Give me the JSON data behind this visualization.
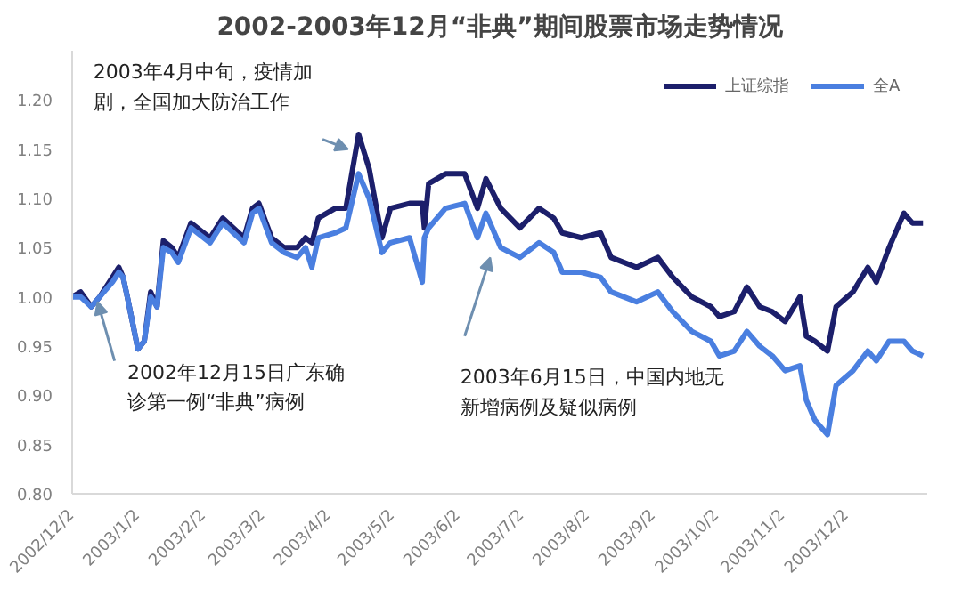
{
  "chart_data": {
    "type": "line",
    "title": "2002-2003年12月“非典”期间股票市场走势情况",
    "xlim": [
      "2002-12-02",
      "2004-01-09"
    ],
    "xticks": [
      {
        "value": "2002-12-02",
        "label": "2002/12/2"
      },
      {
        "value": "2003-01-02",
        "label": "2003/1/2"
      },
      {
        "value": "2003-02-02",
        "label": "2003/2/2"
      },
      {
        "value": "2003-03-02",
        "label": "2003/3/2"
      },
      {
        "value": "2003-04-02",
        "label": "2003/4/2"
      },
      {
        "value": "2003-05-02",
        "label": "2003/5/2"
      },
      {
        "value": "2003-06-02",
        "label": "2003/6/2"
      },
      {
        "value": "2003-07-02",
        "label": "2003/7/2"
      },
      {
        "value": "2003-08-02",
        "label": "2003/8/2"
      },
      {
        "value": "2003-09-02",
        "label": "2003/9/2"
      },
      {
        "value": "2003-10-02",
        "label": "2003/10/2"
      },
      {
        "value": "2003-11-02",
        "label": "2003/11/2"
      },
      {
        "value": "2003-12-02",
        "label": "2003/12/2"
      }
    ],
    "ylim": [
      0.8,
      1.25
    ],
    "yticks": [
      {
        "value": 0.8,
        "label": "0.80"
      },
      {
        "value": 0.85,
        "label": "0.85"
      },
      {
        "value": 0.9,
        "label": "0.90"
      },
      {
        "value": 0.95,
        "label": "0.95"
      },
      {
        "value": 1.0,
        "label": "1.00"
      },
      {
        "value": 1.05,
        "label": "1.05"
      },
      {
        "value": 1.1,
        "label": "1.10"
      },
      {
        "value": 1.15,
        "label": "1.15"
      },
      {
        "value": 1.2,
        "label": "1.20"
      }
    ],
    "x": [
      "2002-12-02",
      "2002-12-06",
      "2002-12-11",
      "2002-12-15",
      "2002-12-21",
      "2002-12-24",
      "2002-12-26",
      "2002-12-28",
      "2003-01-02",
      "2003-01-05",
      "2003-01-08",
      "2003-01-11",
      "2003-01-14",
      "2003-01-18",
      "2003-01-21",
      "2003-01-27",
      "2003-02-05",
      "2003-02-11",
      "2003-02-16",
      "2003-02-21",
      "2003-02-25",
      "2003-02-28",
      "2003-03-06",
      "2003-03-12",
      "2003-03-18",
      "2003-03-22",
      "2003-03-25",
      "2003-03-28",
      "2003-04-05",
      "2003-04-10",
      "2003-04-16",
      "2003-04-21",
      "2003-04-27",
      "2003-05-01",
      "2003-05-10",
      "2003-05-16",
      "2003-05-17",
      "2003-05-19",
      "2003-05-27",
      "2003-06-05",
      "2003-06-11",
      "2003-06-15",
      "2003-06-22",
      "2003-07-01",
      "2003-07-10",
      "2003-07-17",
      "2003-07-21",
      "2003-07-30",
      "2003-08-08",
      "2003-08-13",
      "2003-08-25",
      "2003-09-04",
      "2003-09-11",
      "2003-09-20",
      "2003-09-29",
      "2003-10-03",
      "2003-10-10",
      "2003-10-16",
      "2003-10-22",
      "2003-10-28",
      "2003-11-03",
      "2003-11-10",
      "2003-11-13",
      "2003-11-17",
      "2003-11-23",
      "2003-11-27",
      "2003-12-05",
      "2003-12-12",
      "2003-12-16",
      "2003-12-22",
      "2003-12-29",
      "2004-01-02",
      "2004-01-07"
    ],
    "series": [
      {
        "name": "上证综指",
        "color": "#1c1f6b",
        "values": [
          1.0,
          1.005,
          0.99,
          1.0,
          1.02,
          1.03,
          1.02,
          1.0,
          0.947,
          0.955,
          1.005,
          0.99,
          1.057,
          1.05,
          1.04,
          1.075,
          1.06,
          1.08,
          1.07,
          1.06,
          1.09,
          1.095,
          1.06,
          1.05,
          1.05,
          1.06,
          1.055,
          1.08,
          1.09,
          1.09,
          1.165,
          1.13,
          1.06,
          1.09,
          1.095,
          1.095,
          1.07,
          1.115,
          1.125,
          1.125,
          1.09,
          1.12,
          1.09,
          1.07,
          1.09,
          1.08,
          1.065,
          1.06,
          1.065,
          1.04,
          1.03,
          1.04,
          1.02,
          1.0,
          0.99,
          0.98,
          0.985,
          1.01,
          0.99,
          0.985,
          0.975,
          1.0,
          0.96,
          0.955,
          0.945,
          0.99,
          1.005,
          1.03,
          1.015,
          1.05,
          1.085,
          1.075,
          1.075
        ]
      },
      {
        "name": "全A",
        "color": "#4a7fe0",
        "values": [
          1.0,
          1.0,
          0.99,
          1.0,
          1.015,
          1.025,
          1.02,
          1.0,
          0.947,
          0.955,
          1.0,
          0.99,
          1.05,
          1.045,
          1.035,
          1.07,
          1.055,
          1.075,
          1.065,
          1.055,
          1.085,
          1.09,
          1.055,
          1.045,
          1.04,
          1.05,
          1.03,
          1.06,
          1.065,
          1.07,
          1.125,
          1.1,
          1.045,
          1.055,
          1.06,
          1.015,
          1.06,
          1.07,
          1.09,
          1.095,
          1.06,
          1.085,
          1.05,
          1.04,
          1.055,
          1.045,
          1.025,
          1.025,
          1.02,
          1.005,
          0.995,
          1.005,
          0.985,
          0.965,
          0.955,
          0.94,
          0.945,
          0.965,
          0.95,
          0.94,
          0.925,
          0.93,
          0.895,
          0.875,
          0.86,
          0.91,
          0.925,
          0.945,
          0.935,
          0.955,
          0.955,
          0.945,
          0.94
        ]
      }
    ],
    "legend": "top right",
    "grid": false,
    "marker": "none",
    "line_style": "solid",
    "annotations": [
      {
        "text": "2002年12月15日广东确诊第一例“非典”病例",
        "x": "2002-12-14",
        "y": 0.995
      },
      {
        "text": "2003年4月中旬，疫情加剧，全国加大防治工作",
        "x": "2003-04-11",
        "y": 1.15
      },
      "2003年6月15日，中国内地无新增病例及疑似病例"
    ]
  }
}
